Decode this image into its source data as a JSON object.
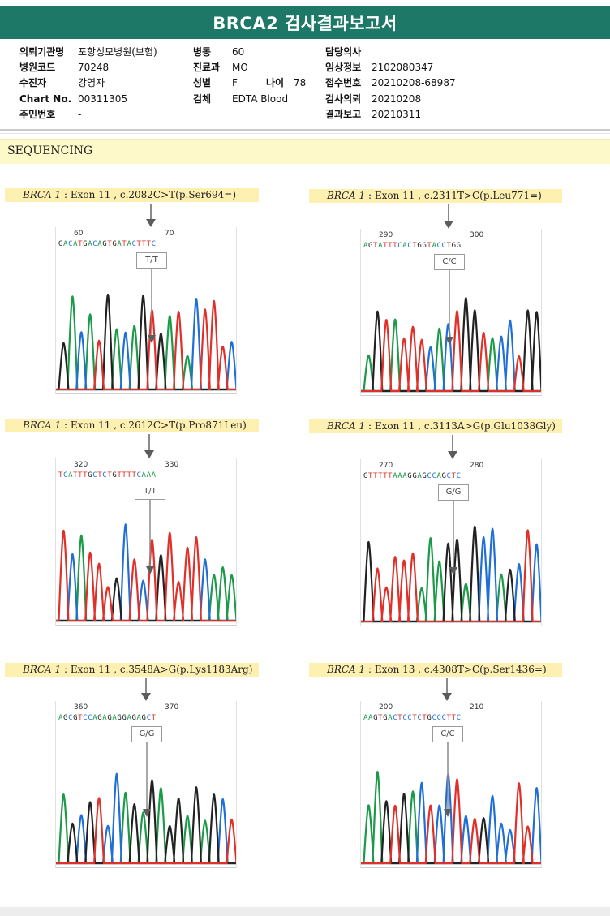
{
  "report": {
    "title": "BRCA2 검사결과보고서"
  },
  "patient": {
    "col1": [
      {
        "label": "의뢰기관명",
        "value": "포항성모병원(보험)"
      },
      {
        "label": "병원코드",
        "value": "70248"
      },
      {
        "label": "수진자",
        "value": "강영자"
      },
      {
        "label": "Chart No.",
        "value": "00311305"
      },
      {
        "label": "주민번호",
        "value": "-"
      }
    ],
    "col2": [
      {
        "label": "병동",
        "value": "60"
      },
      {
        "label": "진료과",
        "value": "MO"
      },
      {
        "label": "성별",
        "value": "F"
      },
      {
        "label": "검체",
        "value": "EDTA Blood"
      }
    ],
    "age": {
      "label": "나이",
      "value": "78"
    },
    "col3": [
      {
        "label": "담당의사",
        "value": ""
      },
      {
        "label": "임상정보",
        "value": "2102080347"
      },
      {
        "label": "접수번호",
        "value": "20210208-68987"
      },
      {
        "label": "검사의뢰",
        "value": "20210208"
      },
      {
        "label": "결과보고",
        "value": "20210311"
      }
    ]
  },
  "section": {
    "title": "SEQUENCING"
  },
  "variants": [
    {
      "gene": "BRCA 1",
      "detail": ": Exon 11 , c.2082C>T(p.Ser694=)",
      "pos1": "60",
      "pos2": "70",
      "sequence": "GACATGACAGTGATACTTTC",
      "call": "T/T"
    },
    {
      "gene": "BRCA 1",
      "detail": ": Exon 11 , c.2311T>C(p.Leu771=)",
      "pos1": "290",
      "pos2": "300",
      "sequence": "AGTATTTCACTGGTACCTGG",
      "call": "C/C"
    },
    {
      "gene": "BRCA 1",
      "detail": ": Exon 11 , c.2612C>T(p.Pro871Leu)",
      "pos1": "320",
      "pos2": "330",
      "sequence": "TCATTTGCTCTGTTTTCAAA",
      "call": "T/T"
    },
    {
      "gene": "BRCA 1",
      "detail": ": Exon 11 , c.3113A>G(p.Glu1038Gly)",
      "pos1": "270",
      "pos2": "280",
      "sequence": "GTTTTTAAAGGAGCCAGCTC",
      "call": "G/G"
    },
    {
      "gene": "BRCA 1",
      "detail": ": Exon 11 , c.3548A>G(p.Lys1183Arg)",
      "pos1": "360",
      "pos2": "370",
      "sequence": "AGCGTCCAGAGAGGAGAGCT",
      "call": "G/G"
    },
    {
      "gene": "BRCA 1",
      "detail": ": Exon 13 , c.4308T>C(p.Ser1436=)",
      "pos1": "200",
      "pos2": "210",
      "sequence": "AAGTGACTCCTCTGCCCTTC",
      "call": "C/C"
    }
  ],
  "colors": {
    "A": "#1b9a48",
    "C": "#1f6fd6",
    "G": "#222222",
    "T": "#e0302a",
    "header": "#1d7868",
    "band": "#fdf9c8"
  }
}
